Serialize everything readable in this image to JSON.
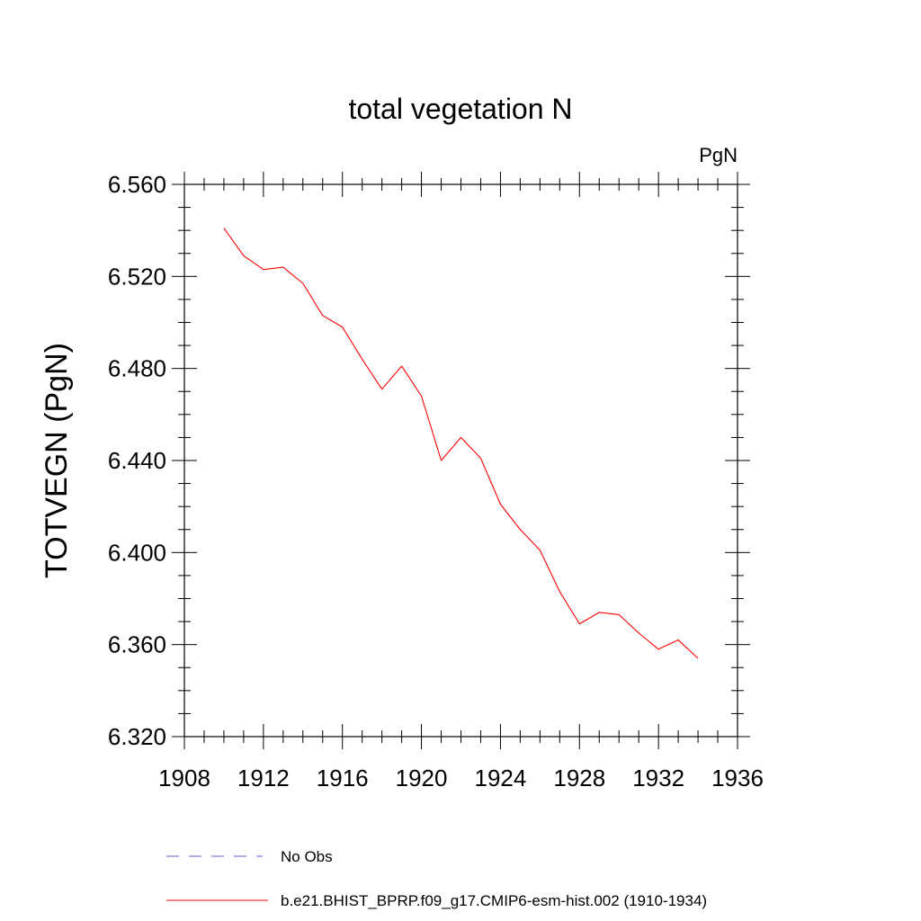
{
  "chart_data": {
    "type": "line",
    "title": "total vegetation N",
    "units_label": "PgN",
    "ylabel": "TOTVEGN  (PgN)",
    "xlabel": "",
    "xlim": [
      1908,
      1936
    ],
    "ylim": [
      6.32,
      6.56
    ],
    "x_ticks": [
      1908,
      1912,
      1916,
      1920,
      1924,
      1928,
      1932,
      1936
    ],
    "x_tick_labels": [
      "1908",
      "1912",
      "1916",
      "1920",
      "1924",
      "1928",
      "1932",
      "1936"
    ],
    "y_ticks": [
      6.32,
      6.36,
      6.4,
      6.44,
      6.48,
      6.52,
      6.56
    ],
    "y_tick_labels": [
      "6.320",
      "6.360",
      "6.400",
      "6.440",
      "6.480",
      "6.520",
      "6.560"
    ],
    "grid": false,
    "legend_position": "bottom",
    "series": [
      {
        "name": "b.e21.BHIST_BPRP.f09_g17.CMIP6-esm-hist.002 (1910-1934)",
        "color": "#ff0000",
        "style": "solid",
        "x": [
          1910,
          1911,
          1912,
          1913,
          1914,
          1915,
          1916,
          1917,
          1918,
          1919,
          1920,
          1921,
          1922,
          1923,
          1924,
          1925,
          1926,
          1927,
          1928,
          1929,
          1930,
          1931,
          1932,
          1933,
          1934
        ],
        "y": [
          6.541,
          6.529,
          6.523,
          6.524,
          6.517,
          6.503,
          6.498,
          6.484,
          6.471,
          6.481,
          6.468,
          6.44,
          6.45,
          6.441,
          6.421,
          6.41,
          6.401,
          6.383,
          6.369,
          6.374,
          6.373,
          6.365,
          6.358,
          6.362,
          6.354
        ]
      }
    ],
    "legend": [
      {
        "label": "No Obs",
        "color": "#6a5acd",
        "style": "dashed"
      },
      {
        "label": "b.e21.BHIST_BPRP.f09_g17.CMIP6-esm-hist.002 (1910-1934)",
        "color": "#ff0000",
        "style": "solid"
      }
    ]
  }
}
